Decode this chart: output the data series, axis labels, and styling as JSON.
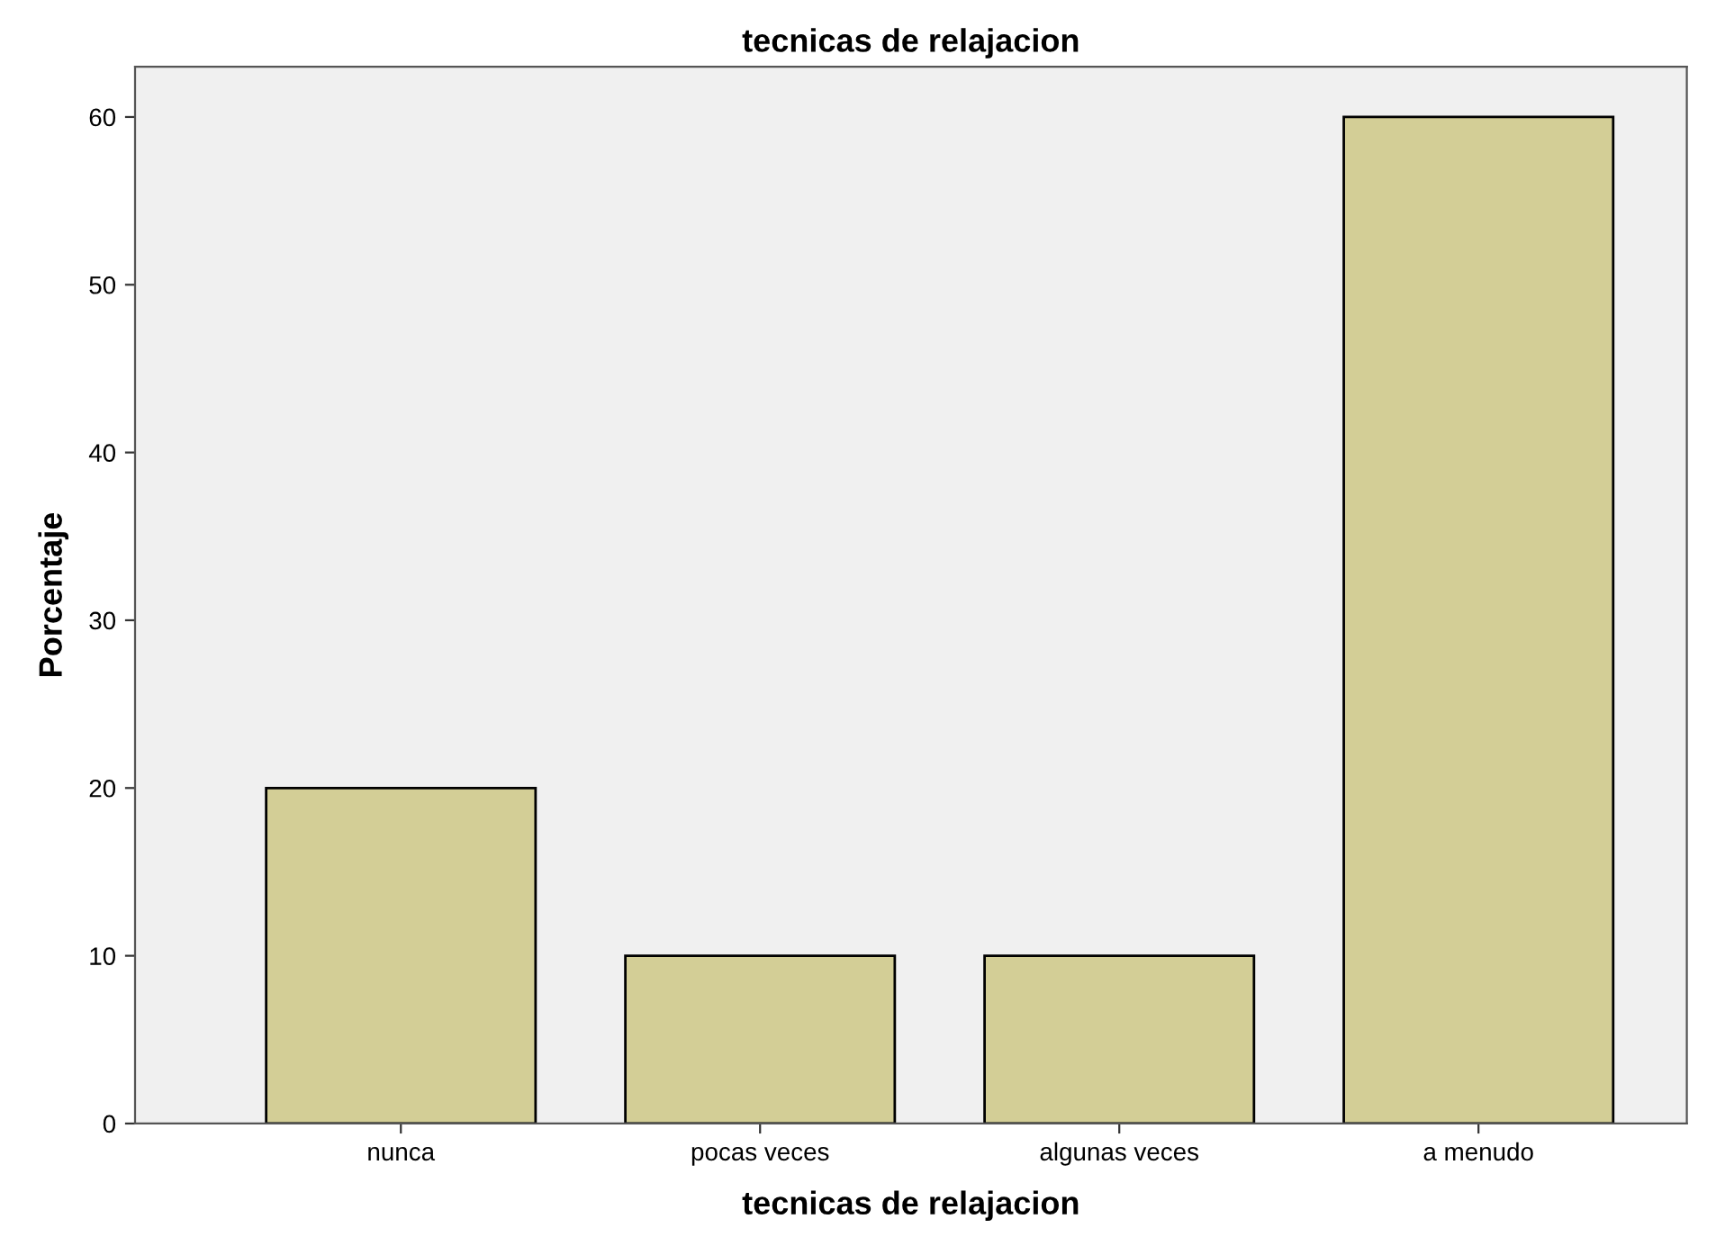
{
  "chart_data": {
    "type": "bar",
    "title": "tecnicas de relajacion",
    "xlabel": "tecnicas de relajacion",
    "ylabel": "Porcentaje",
    "categories": [
      "nunca",
      "pocas veces",
      "algunas veces",
      "a menudo"
    ],
    "series": [
      {
        "color": "#d3ce96",
        "values": [
          20,
          10,
          10,
          60
        ]
      }
    ],
    "ylim": [
      0,
      63
    ],
    "yticks": [
      0,
      10,
      20,
      30,
      40,
      50,
      60
    ],
    "grid": false,
    "legend": false
  }
}
